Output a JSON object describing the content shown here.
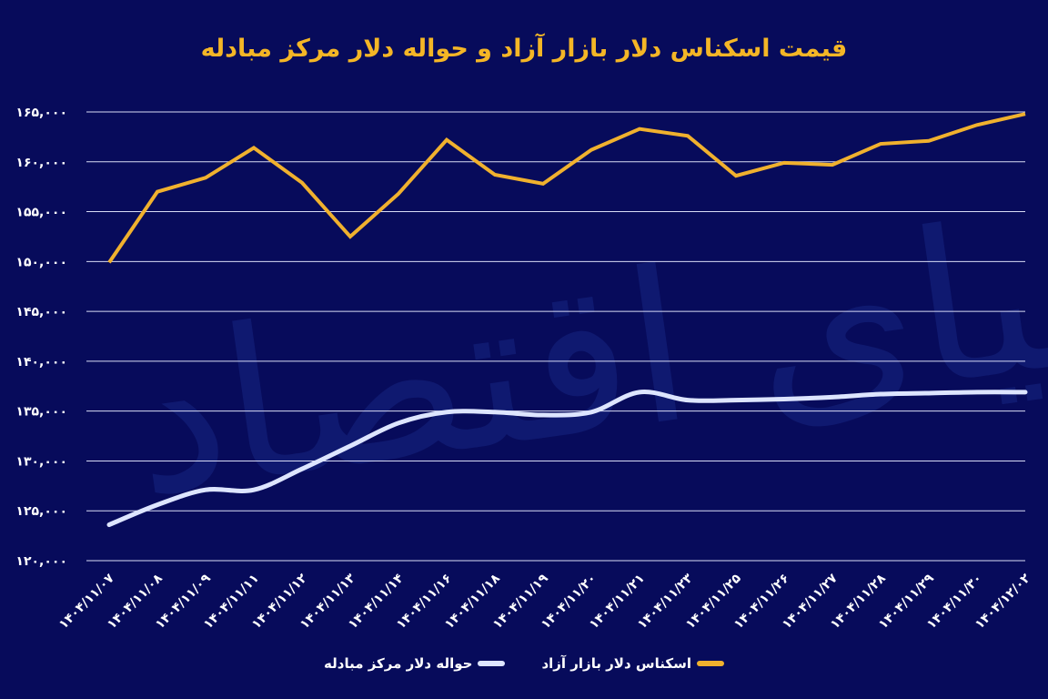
{
  "chart_data": {
    "type": "line",
    "title": "قیمت اسکناس دلار بازار آزاد و حواله دلار مرکز مبادله",
    "xlabel": "",
    "ylabel": "",
    "ylim": [
      120000,
      165000
    ],
    "yticks": [
      120000,
      125000,
      130000,
      135000,
      140000,
      145000,
      150000,
      155000,
      160000,
      165000
    ],
    "ytick_labels": [
      "۱۲۰,۰۰۰",
      "۱۲۵,۰۰۰",
      "۱۳۰,۰۰۰",
      "۱۳۵,۰۰۰",
      "۱۴۰,۰۰۰",
      "۱۴۵,۰۰۰",
      "۱۵۰,۰۰۰",
      "۱۵۵,۰۰۰",
      "۱۶۰,۰۰۰",
      "۱۶۵,۰۰۰"
    ],
    "grid": true,
    "legend_placement": "bottom",
    "categories": [
      "۱۴۰۴/۱۱/۰۷",
      "۱۴۰۴/۱۱/۰۸",
      "۱۴۰۴/۱۱/۰۹",
      "۱۴۰۴/۱۱/۱۱",
      "۱۴۰۴/۱۱/۱۲",
      "۱۴۰۴/۱۱/۱۳",
      "۱۴۰۴/۱۱/۱۴",
      "۱۴۰۴/۱۱/۱۶",
      "۱۴۰۴/۱۱/۱۸",
      "۱۴۰۴/۱۱/۱۹",
      "۱۴۰۴/۱۱/۲۰",
      "۱۴۰۴/۱۱/۲۱",
      "۱۴۰۴/۱۱/۲۳",
      "۱۴۰۴/۱۱/۲۵",
      "۱۴۰۴/۱۱/۲۶",
      "۱۴۰۴/۱۱/۲۷",
      "۱۴۰۴/۱۱/۲۸",
      "۱۴۰۴/۱۱/۲۹",
      "۱۴۰۴/۱۱/۳۰",
      "۱۴۰۴/۱۲/۰۲"
    ],
    "series": [
      {
        "name": "اسکناس دلار بازار آزاد",
        "color": "#f0b12e",
        "values": [
          149900,
          157000,
          158400,
          161400,
          157900,
          152500,
          156800,
          162200,
          158700,
          157800,
          161200,
          163300,
          162600,
          158600,
          159900,
          159700,
          161800,
          162100,
          163700,
          164800
        ]
      },
      {
        "name": "حواله دلار مرکز مبادله",
        "color": "#dde5ff",
        "values": [
          123600,
          125600,
          127100,
          127100,
          129200,
          131500,
          133800,
          134900,
          134900,
          134600,
          134900,
          136900,
          136100,
          136100,
          136200,
          136400,
          136700,
          136800,
          136900,
          136900
        ]
      }
    ]
  },
  "watermark": "دنیای اقتصاد",
  "colors": {
    "background": "#070b5b",
    "title": "#f4b626"
  }
}
